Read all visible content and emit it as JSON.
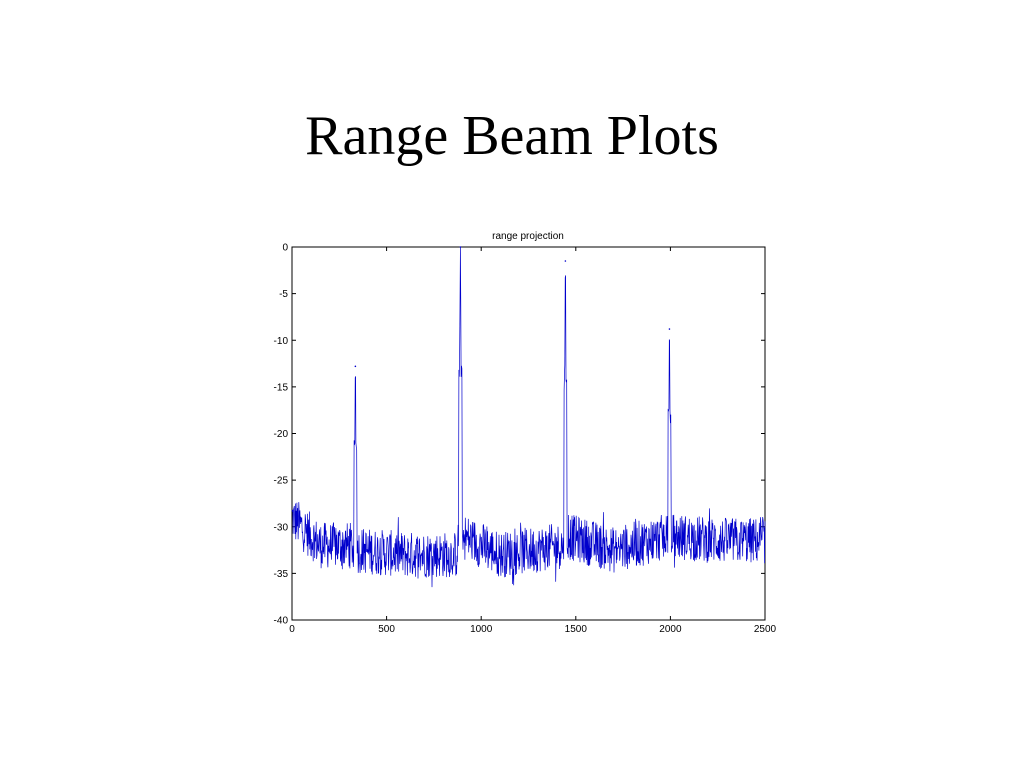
{
  "slide": {
    "title": "Range Beam Plots"
  },
  "chart_data": {
    "type": "line",
    "title": "range projection",
    "xlabel": "",
    "ylabel": "",
    "xlim": [
      0,
      2500
    ],
    "ylim": [
      -40,
      0
    ],
    "xticks": [
      0,
      500,
      1000,
      1500,
      2000,
      2500
    ],
    "yticks": [
      0,
      -5,
      -10,
      -15,
      -20,
      -25,
      -30,
      -35,
      -40
    ],
    "grid": false,
    "line_color": "#0000cc",
    "baseline_segments": [
      {
        "x": [
          0,
          150,
          330
        ],
        "y": [
          -29,
          -32,
          -32
        ]
      },
      {
        "x": [
          345,
          600,
          870
        ],
        "y": [
          -32.5,
          -33,
          -33
        ]
      },
      {
        "x": [
          905,
          1100,
          1435
        ],
        "y": [
          -31,
          -33,
          -32
        ]
      },
      {
        "x": [
          1455,
          1700,
          1990
        ],
        "y": [
          -31,
          -32.5,
          -31
        ]
      },
      {
        "x": [
          2005,
          2250,
          2500
        ],
        "y": [
          -31,
          -31.5,
          -31.5
        ]
      }
    ],
    "peaks": [
      {
        "x": 335,
        "y": -12.8,
        "shoulder": -21
      },
      {
        "x": 890,
        "y": 0,
        "shoulder": -13
      },
      {
        "x": 1445,
        "y": -1.5,
        "shoulder": -15
      },
      {
        "x": 1995,
        "y": -8.8,
        "shoulder": -18
      }
    ],
    "noise_amplitude": 2.5
  }
}
